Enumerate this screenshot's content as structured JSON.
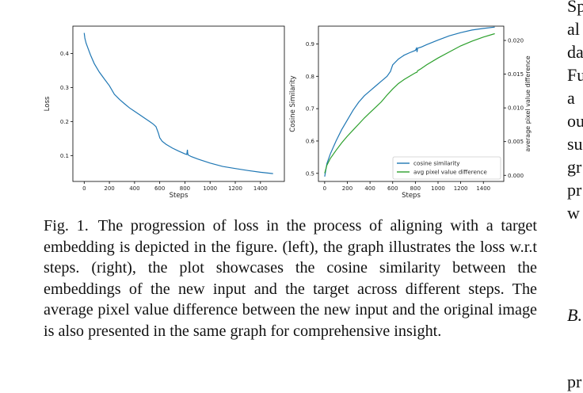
{
  "chart_data": [
    {
      "type": "line",
      "title": "",
      "xlabel": "Steps",
      "ylabel": "Loss",
      "xlim": [
        -90,
        1590
      ],
      "ylim": [
        0.024,
        0.48
      ],
      "xticks": [
        0,
        200,
        400,
        600,
        800,
        1000,
        1200,
        1400
      ],
      "yticks": [
        0.1,
        0.2,
        0.3,
        0.4
      ],
      "grid": false,
      "series": [
        {
          "color": "#1f77b4",
          "x": [
            0,
            5,
            15,
            30,
            50,
            80,
            120,
            160,
            200,
            240,
            280,
            320,
            360,
            400,
            440,
            480,
            520,
            550,
            570,
            580,
            590,
            600,
            620,
            650,
            700,
            750,
            800,
            815,
            820,
            822,
            825,
            850,
            900,
            1000,
            1100,
            1200,
            1300,
            1400,
            1500
          ],
          "y": [
            0.46,
            0.445,
            0.43,
            0.415,
            0.395,
            0.37,
            0.345,
            0.325,
            0.305,
            0.28,
            0.265,
            0.252,
            0.24,
            0.23,
            0.22,
            0.21,
            0.2,
            0.192,
            0.185,
            0.175,
            0.165,
            0.152,
            0.142,
            0.133,
            0.122,
            0.113,
            0.105,
            0.103,
            0.117,
            0.108,
            0.102,
            0.097,
            0.09,
            0.078,
            0.068,
            0.062,
            0.056,
            0.051,
            0.047
          ]
        }
      ]
    },
    {
      "type": "line",
      "title": "",
      "xlabel": "Steps",
      "ylabel": "Cosine Similarity",
      "ylabel_right": "average pixel value difference",
      "xlim": [
        -55,
        1580
      ],
      "ylim": [
        0.475,
        0.955
      ],
      "ylim_right": [
        -0.00091,
        0.02212
      ],
      "xticks": [
        0,
        200,
        400,
        600,
        800,
        1000,
        1200,
        1400
      ],
      "yticks": [
        0.5,
        0.6,
        0.7,
        0.8,
        0.9
      ],
      "yticks_right": [
        "0.000",
        "0.005",
        "0.010",
        "0.015",
        "0.020"
      ],
      "grid": false,
      "legend_position": "lower-right",
      "series": [
        {
          "name": "cosine similarity",
          "axis": "left",
          "color": "#1f77b4",
          "x": [
            0,
            20,
            50,
            100,
            150,
            200,
            250,
            300,
            350,
            400,
            450,
            500,
            550,
            580,
            600,
            650,
            700,
            750,
            800,
            810,
            815,
            820,
            850,
            900,
            1000,
            1100,
            1200,
            1300,
            1400,
            1500
          ],
          "y": [
            0.49,
            0.53,
            0.56,
            0.6,
            0.635,
            0.665,
            0.695,
            0.72,
            0.74,
            0.755,
            0.77,
            0.785,
            0.8,
            0.815,
            0.835,
            0.853,
            0.865,
            0.873,
            0.88,
            0.887,
            0.875,
            0.887,
            0.89,
            0.898,
            0.912,
            0.925,
            0.935,
            0.943,
            0.948,
            0.952
          ]
        },
        {
          "name": "avg pixel value difference",
          "axis": "right",
          "color": "#2ca02c",
          "x": [
            0,
            20,
            50,
            100,
            150,
            200,
            250,
            300,
            350,
            400,
            450,
            500,
            550,
            600,
            650,
            700,
            750,
            800,
            815,
            820,
            850,
            900,
            1000,
            1100,
            1200,
            1300,
            1400,
            1500
          ],
          "y": [
            0.0003,
            0.0015,
            0.0025,
            0.0037,
            0.0048,
            0.0058,
            0.0067,
            0.0076,
            0.0085,
            0.0093,
            0.0101,
            0.0109,
            0.0119,
            0.0128,
            0.0136,
            0.0142,
            0.0147,
            0.0152,
            0.0153,
            0.0155,
            0.0158,
            0.0164,
            0.0174,
            0.0183,
            0.0192,
            0.0199,
            0.0205,
            0.021
          ]
        }
      ]
    }
  ],
  "caption": {
    "label": "Fig. 1.",
    "text": "The progression of loss in the process of aligning with a target embedding is depicted in the figure. (left), the graph illustrates the loss w.r.t steps. (right), the plot showcases the cosine similarity between the embeddings of the new input and the target across different steps. The average pixel value difference between the new input and the original image is also presented in the same graph for comprehensive insight."
  },
  "side_column": {
    "lines": [
      "Sp",
      "al",
      "da",
      "Fu",
      "a",
      "ou",
      "su",
      "gr",
      "pr",
      "w"
    ],
    "heading": "B.",
    "last": "pr"
  }
}
